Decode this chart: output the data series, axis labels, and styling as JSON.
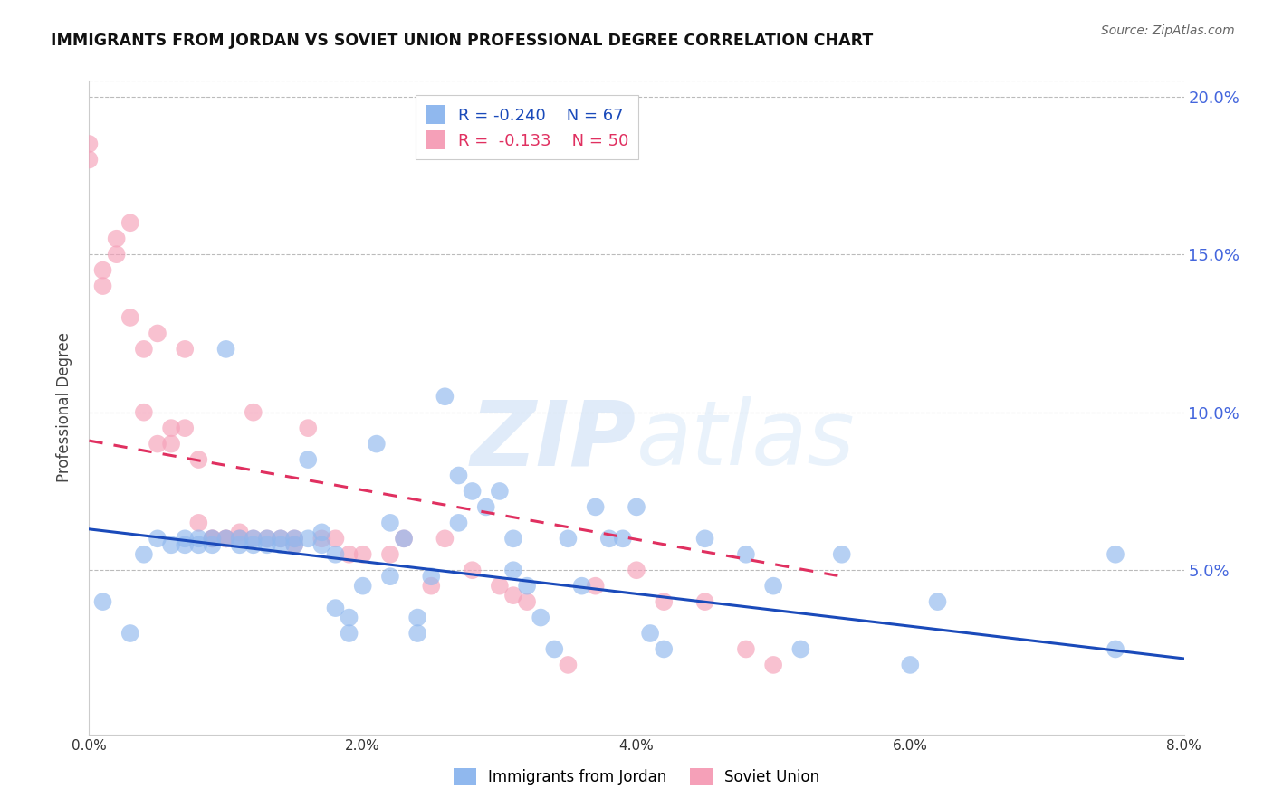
{
  "title": "IMMIGRANTS FROM JORDAN VS SOVIET UNION PROFESSIONAL DEGREE CORRELATION CHART",
  "source": "Source: ZipAtlas.com",
  "ylabel": "Professional Degree",
  "xmin": 0.0,
  "xmax": 0.08,
  "ymin": -0.002,
  "ymax": 0.205,
  "watermark_zip": "ZIP",
  "watermark_atlas": "atlas",
  "legend_jordan_R": "-0.240",
  "legend_jordan_N": "67",
  "legend_soviet_R": "-0.133",
  "legend_soviet_N": "50",
  "jordan_color": "#90B8EE",
  "soviet_color": "#F5A0B8",
  "jordan_line_color": "#1A4ABA",
  "soviet_line_color": "#E03060",
  "jordan_line_x0": 0.0,
  "jordan_line_y0": 0.063,
  "jordan_line_x1": 0.08,
  "jordan_line_y1": 0.022,
  "soviet_line_x0": 0.0,
  "soviet_line_y0": 0.091,
  "soviet_line_x1": 0.055,
  "soviet_line_y1": 0.048,
  "jordan_points_x": [
    0.001,
    0.003,
    0.004,
    0.005,
    0.006,
    0.007,
    0.007,
    0.008,
    0.008,
    0.009,
    0.009,
    0.01,
    0.01,
    0.011,
    0.011,
    0.012,
    0.012,
    0.013,
    0.013,
    0.014,
    0.014,
    0.015,
    0.015,
    0.016,
    0.016,
    0.017,
    0.017,
    0.018,
    0.018,
    0.019,
    0.019,
    0.02,
    0.021,
    0.022,
    0.022,
    0.023,
    0.024,
    0.024,
    0.025,
    0.026,
    0.027,
    0.027,
    0.028,
    0.029,
    0.03,
    0.031,
    0.031,
    0.032,
    0.033,
    0.034,
    0.035,
    0.036,
    0.037,
    0.038,
    0.039,
    0.04,
    0.041,
    0.042,
    0.045,
    0.048,
    0.05,
    0.052,
    0.055,
    0.06,
    0.062,
    0.075,
    0.075
  ],
  "jordan_points_y": [
    0.04,
    0.03,
    0.055,
    0.06,
    0.058,
    0.06,
    0.058,
    0.06,
    0.058,
    0.06,
    0.058,
    0.12,
    0.06,
    0.06,
    0.058,
    0.06,
    0.058,
    0.058,
    0.06,
    0.06,
    0.058,
    0.06,
    0.058,
    0.085,
    0.06,
    0.062,
    0.058,
    0.055,
    0.038,
    0.035,
    0.03,
    0.045,
    0.09,
    0.065,
    0.048,
    0.06,
    0.03,
    0.035,
    0.048,
    0.105,
    0.08,
    0.065,
    0.075,
    0.07,
    0.075,
    0.06,
    0.05,
    0.045,
    0.035,
    0.025,
    0.06,
    0.045,
    0.07,
    0.06,
    0.06,
    0.07,
    0.03,
    0.025,
    0.06,
    0.055,
    0.045,
    0.025,
    0.055,
    0.02,
    0.04,
    0.055,
    0.025
  ],
  "soviet_points_x": [
    0.0,
    0.0,
    0.001,
    0.001,
    0.002,
    0.002,
    0.003,
    0.003,
    0.004,
    0.004,
    0.005,
    0.005,
    0.006,
    0.006,
    0.007,
    0.007,
    0.008,
    0.008,
    0.009,
    0.009,
    0.01,
    0.01,
    0.011,
    0.011,
    0.012,
    0.012,
    0.013,
    0.014,
    0.015,
    0.015,
    0.016,
    0.017,
    0.018,
    0.019,
    0.02,
    0.022,
    0.023,
    0.025,
    0.026,
    0.028,
    0.03,
    0.031,
    0.032,
    0.035,
    0.037,
    0.04,
    0.042,
    0.045,
    0.048,
    0.05
  ],
  "soviet_points_y": [
    0.18,
    0.185,
    0.14,
    0.145,
    0.155,
    0.15,
    0.16,
    0.13,
    0.12,
    0.1,
    0.125,
    0.09,
    0.09,
    0.095,
    0.095,
    0.12,
    0.065,
    0.085,
    0.06,
    0.06,
    0.06,
    0.06,
    0.06,
    0.062,
    0.06,
    0.1,
    0.06,
    0.06,
    0.06,
    0.058,
    0.095,
    0.06,
    0.06,
    0.055,
    0.055,
    0.055,
    0.06,
    0.045,
    0.06,
    0.05,
    0.045,
    0.042,
    0.04,
    0.02,
    0.045,
    0.05,
    0.04,
    0.04,
    0.025,
    0.02
  ]
}
